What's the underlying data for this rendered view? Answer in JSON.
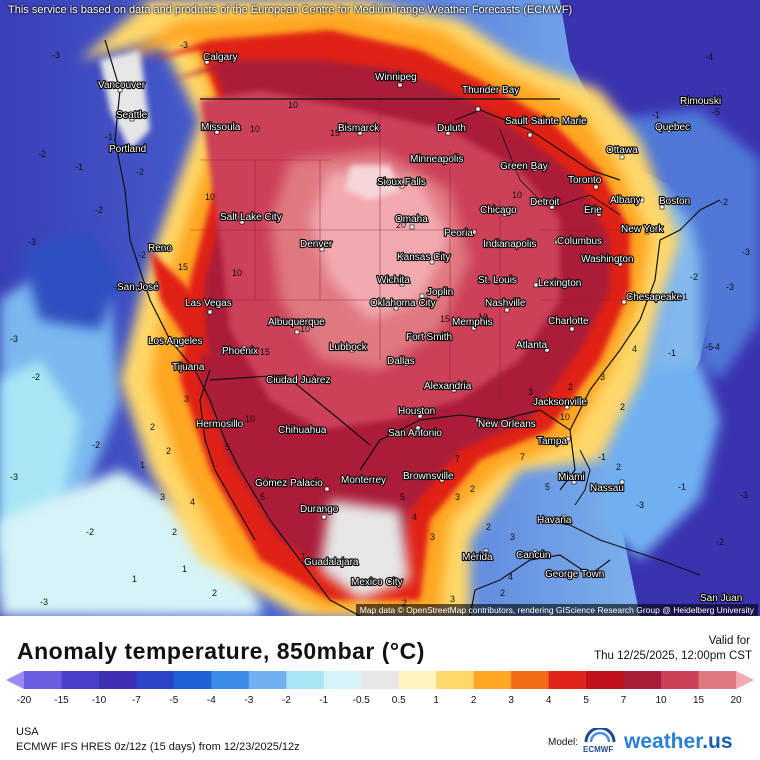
{
  "disclaimer": "This service is based on data and products of the European Centre for Medium-range Weather Forecasts (ECMWF)",
  "attribution": "Map data © OpenStreetMap contributors, rendering GIScience Research Group @ Heidelberg University",
  "title": "Anomaly  temperature, 850mbar (°C)",
  "valid_label": "Valid for",
  "valid_time": "Thu 12/25/2025, 12:00pm CST",
  "region": "USA",
  "model_info": "ECMWF IFS HRES 0z/12z (15 days) from 12/23/2025/12z",
  "model_label": "Model:",
  "ecmwf_text": "ECMWF",
  "brand": {
    "name": "weather",
    "tld": ".us"
  },
  "legend": {
    "ticks": [
      "-20",
      "-15",
      "-10",
      "-7",
      "-5",
      "-4",
      "-3",
      "-2",
      "-1",
      "-0.5",
      "0.5",
      "1",
      "2",
      "3",
      "4",
      "5",
      "7",
      "10",
      "15",
      "20"
    ],
    "colors": [
      "#9b89f5",
      "#6a5fe0",
      "#4a3fc9",
      "#3e2fb5",
      "#2a45c8",
      "#1f62d8",
      "#3c8be8",
      "#6fb0f0",
      "#a8e6f5",
      "#d6f3f8",
      "#e6e6e6",
      "#fff3c0",
      "#ffd76a",
      "#ffa623",
      "#f26b16",
      "#e02418",
      "#c0101c",
      "#aa1d38",
      "#cc4058",
      "#e07880",
      "#f2aab0"
    ]
  },
  "cities": [
    {
      "name": "Calgary"
    },
    {
      "name": "Winnipeg"
    },
    {
      "name": "Thunder Bay"
    },
    {
      "name": "Vancouver"
    },
    {
      "name": "Seattle"
    },
    {
      "name": "Missoula"
    },
    {
      "name": "Bismarck"
    },
    {
      "name": "Duluth"
    },
    {
      "name": "Sault Sainte Marie"
    },
    {
      "name": "Rimouski"
    },
    {
      "name": "Quebec"
    },
    {
      "name": "Ottawa"
    },
    {
      "name": "Portland"
    },
    {
      "name": "Minneapolis"
    },
    {
      "name": "Green Bay"
    },
    {
      "name": "Sioux Falls"
    },
    {
      "name": "Toronto"
    },
    {
      "name": "Albany"
    },
    {
      "name": "Boston"
    },
    {
      "name": "Detroit"
    },
    {
      "name": "Chicago"
    },
    {
      "name": "Erie"
    },
    {
      "name": "New York"
    },
    {
      "name": "Salt Lake City"
    },
    {
      "name": "Omaha"
    },
    {
      "name": "Peoria"
    },
    {
      "name": "Indianapolis"
    },
    {
      "name": "Columbus"
    },
    {
      "name": "Reno"
    },
    {
      "name": "Denver"
    },
    {
      "name": "Kansas City"
    },
    {
      "name": "Washington"
    },
    {
      "name": "Wichita"
    },
    {
      "name": "St. Louis"
    },
    {
      "name": "Lexington"
    },
    {
      "name": "San José"
    },
    {
      "name": "Joplin"
    },
    {
      "name": "Las Vegas"
    },
    {
      "name": "Oklahoma City"
    },
    {
      "name": "Nashville"
    },
    {
      "name": "Chesapeake"
    },
    {
      "name": "Albuquerque"
    },
    {
      "name": "Memphis"
    },
    {
      "name": "Charlotte"
    },
    {
      "name": "Fort Smith"
    },
    {
      "name": "Los Angeles"
    },
    {
      "name": "Phoenix"
    },
    {
      "name": "Lubbock"
    },
    {
      "name": "Atlanta"
    },
    {
      "name": "Tijuana"
    },
    {
      "name": "Dallas"
    },
    {
      "name": "Ciudad Juárez"
    },
    {
      "name": "Alexandria"
    },
    {
      "name": "Jacksonville"
    },
    {
      "name": "Houston"
    },
    {
      "name": "Hermosillo"
    },
    {
      "name": "New Orleans"
    },
    {
      "name": "Chihuahua"
    },
    {
      "name": "San Antonio"
    },
    {
      "name": "Tampa"
    },
    {
      "name": "Brownsville"
    },
    {
      "name": "Monterrey"
    },
    {
      "name": "Gómez Palacio"
    },
    {
      "name": "Miami"
    },
    {
      "name": "Nassau"
    },
    {
      "name": "Durango"
    },
    {
      "name": "Havana"
    },
    {
      "name": "Guadalajara"
    },
    {
      "name": "Mérida"
    },
    {
      "name": "Cancún"
    },
    {
      "name": "Mexico City"
    },
    {
      "name": "George Town"
    },
    {
      "name": "San Juan"
    }
  ],
  "contour_labels": [
    "-3",
    "-2",
    "-1",
    "-3",
    "-2",
    "-1",
    "-3",
    "-2",
    "-3",
    "-2",
    "-4",
    "-5",
    "-1",
    "-2",
    "-3",
    "-4",
    "-5",
    "-3",
    "-2",
    "-1",
    "-3",
    "-1",
    "-2",
    "-3",
    "-2",
    "10",
    "10",
    "15",
    "10",
    "10",
    "10",
    "10",
    "15",
    "10",
    "15",
    "20",
    "10",
    "15",
    "10",
    "5",
    "5",
    "7",
    "4",
    "3",
    "2",
    "1",
    "2",
    "2",
    "3",
    "2",
    "1",
    "1",
    "2",
    "3",
    "4",
    "5",
    "7",
    "2",
    "3",
    "4",
    "3",
    "5",
    "7",
    "2",
    "3",
    "2",
    "3",
    "2",
    "-1",
    "-3",
    "-1",
    "-2",
    "-2",
    "-3",
    "-2",
    "-2",
    "2",
    "3",
    "2",
    "4"
  ]
}
